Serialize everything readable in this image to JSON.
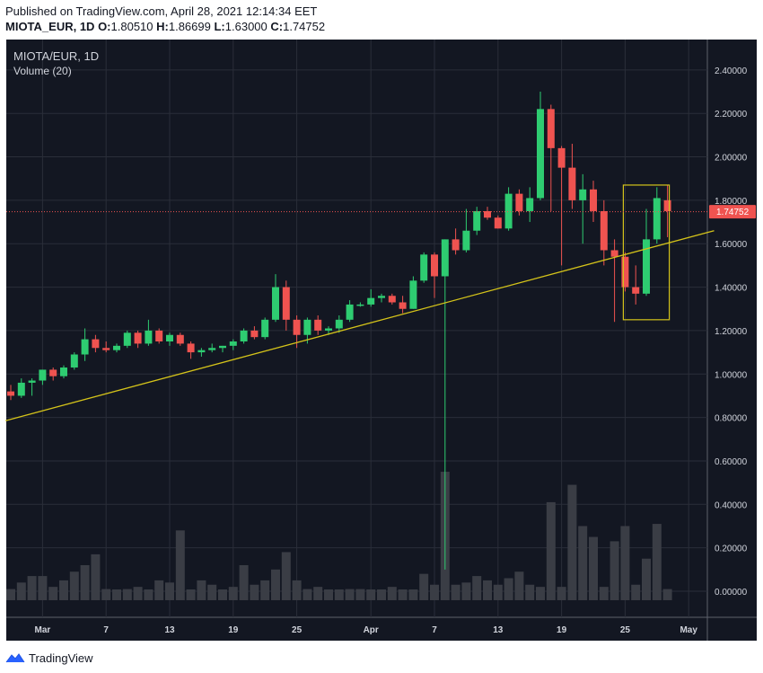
{
  "header": {
    "published": "Published on TradingView.com, April 28, 2021 12:14:34 EET",
    "symbol": "MIOTA_EUR, 1D",
    "open_label": "O:",
    "open": "1.80510",
    "high_label": "H:",
    "high": "1.86699",
    "low_label": "L:",
    "low": "1.63000",
    "close_label": "C:",
    "close": "1.74752"
  },
  "legend": {
    "title": "MIOTA/EUR, 1D",
    "volume": "Volume (20)"
  },
  "footer": {
    "brand": "TradingView"
  },
  "colors": {
    "up": "#26a69a",
    "up_bright": "#2ecc71",
    "down": "#ef5350",
    "trendline": "#d4c31a",
    "box": "#d4c31a",
    "price_line": "#ef5350",
    "background": "#131722",
    "grid": "#2a2e39"
  },
  "chart_data": {
    "type": "candlestick",
    "current_price": "1.74752",
    "y_ticks": [
      "2.40000",
      "2.20000",
      "2.00000",
      "1.80000",
      "1.60000",
      "1.40000",
      "1.20000",
      "1.00000",
      "0.80000",
      "0.60000",
      "0.40000",
      "0.20000",
      "0.00000"
    ],
    "y_tick_values": [
      2.4,
      2.2,
      2.0,
      1.8,
      1.6,
      1.4,
      1.2,
      1.0,
      0.8,
      0.6,
      0.4,
      0.2,
      0.0
    ],
    "ylim": [
      -0.12,
      2.54
    ],
    "x_ticks": [
      {
        "label": "Mar",
        "index": 3
      },
      {
        "label": "7",
        "index": 9
      },
      {
        "label": "13",
        "index": 15
      },
      {
        "label": "19",
        "index": 21
      },
      {
        "label": "25",
        "index": 27
      },
      {
        "label": "Apr",
        "index": 34
      },
      {
        "label": "7",
        "index": 40
      },
      {
        "label": "13",
        "index": 46
      },
      {
        "label": "19",
        "index": 52
      },
      {
        "label": "25",
        "index": 58
      },
      {
        "label": "May",
        "index": 64
      }
    ],
    "candles": [
      [
        0.92,
        0.95,
        0.88,
        0.9
      ],
      [
        0.9,
        0.98,
        0.89,
        0.96
      ],
      [
        0.96,
        0.98,
        0.9,
        0.97
      ],
      [
        0.97,
        1.02,
        0.95,
        1.02
      ],
      [
        1.02,
        1.03,
        0.97,
        0.99
      ],
      [
        0.99,
        1.04,
        0.98,
        1.03
      ],
      [
        1.03,
        1.1,
        1.02,
        1.09
      ],
      [
        1.09,
        1.21,
        1.06,
        1.16
      ],
      [
        1.16,
        1.18,
        1.1,
        1.12
      ],
      [
        1.12,
        1.15,
        1.1,
        1.11
      ],
      [
        1.11,
        1.14,
        1.1,
        1.13
      ],
      [
        1.13,
        1.2,
        1.12,
        1.19
      ],
      [
        1.19,
        1.2,
        1.12,
        1.14
      ],
      [
        1.14,
        1.25,
        1.13,
        1.2
      ],
      [
        1.2,
        1.21,
        1.14,
        1.15
      ],
      [
        1.15,
        1.19,
        1.13,
        1.18
      ],
      [
        1.18,
        1.19,
        1.13,
        1.14
      ],
      [
        1.14,
        1.15,
        1.07,
        1.1
      ],
      [
        1.1,
        1.12,
        1.08,
        1.11
      ],
      [
        1.11,
        1.14,
        1.1,
        1.12
      ],
      [
        1.12,
        1.13,
        1.1,
        1.13
      ],
      [
        1.13,
        1.16,
        1.11,
        1.15
      ],
      [
        1.15,
        1.21,
        1.14,
        1.2
      ],
      [
        1.2,
        1.22,
        1.16,
        1.17
      ],
      [
        1.17,
        1.26,
        1.16,
        1.25
      ],
      [
        1.25,
        1.46,
        1.24,
        1.4
      ],
      [
        1.4,
        1.43,
        1.2,
        1.25
      ],
      [
        1.25,
        1.27,
        1.12,
        1.18
      ],
      [
        1.18,
        1.26,
        1.14,
        1.25
      ],
      [
        1.25,
        1.27,
        1.18,
        1.2
      ],
      [
        1.2,
        1.22,
        1.18,
        1.21
      ],
      [
        1.21,
        1.27,
        1.19,
        1.25
      ],
      [
        1.25,
        1.34,
        1.24,
        1.32
      ],
      [
        1.32,
        1.33,
        1.31,
        1.32
      ],
      [
        1.32,
        1.39,
        1.31,
        1.35
      ],
      [
        1.35,
        1.37,
        1.33,
        1.36
      ],
      [
        1.36,
        1.37,
        1.32,
        1.33
      ],
      [
        1.33,
        1.36,
        1.28,
        1.3
      ],
      [
        1.3,
        1.45,
        1.3,
        1.43
      ],
      [
        1.43,
        1.56,
        1.42,
        1.55
      ],
      [
        1.55,
        1.56,
        1.35,
        1.45
      ],
      [
        1.45,
        1.62,
        0.1,
        1.62
      ],
      [
        1.62,
        1.67,
        1.55,
        1.57
      ],
      [
        1.57,
        1.76,
        1.56,
        1.66
      ],
      [
        1.66,
        1.77,
        1.64,
        1.75
      ],
      [
        1.75,
        1.77,
        1.71,
        1.72
      ],
      [
        1.72,
        1.73,
        1.67,
        1.67
      ],
      [
        1.67,
        1.86,
        1.66,
        1.83
      ],
      [
        1.83,
        1.85,
        1.73,
        1.75
      ],
      [
        1.75,
        1.86,
        1.7,
        1.81
      ],
      [
        1.81,
        2.3,
        1.8,
        2.22
      ],
      [
        2.22,
        2.24,
        1.75,
        2.04
      ],
      [
        2.04,
        2.05,
        1.5,
        1.95
      ],
      [
        1.95,
        2.06,
        1.76,
        1.8
      ],
      [
        1.8,
        1.92,
        1.6,
        1.85
      ],
      [
        1.85,
        1.89,
        1.7,
        1.75
      ],
      [
        1.75,
        1.8,
        1.5,
        1.57
      ],
      [
        1.57,
        1.62,
        1.24,
        1.54
      ],
      [
        1.54,
        1.56,
        1.38,
        1.4
      ],
      [
        1.4,
        1.5,
        1.32,
        1.37
      ],
      [
        1.37,
        1.76,
        1.36,
        1.62
      ],
      [
        1.62,
        1.86,
        1.6,
        1.81
      ],
      [
        1.8,
        1.87,
        1.63,
        1.75
      ]
    ],
    "volume": [
      0.01,
      0.04,
      0.07,
      0.07,
      0.02,
      0.05,
      0.09,
      0.12,
      0.17,
      0.01,
      0.0,
      0.01,
      0.02,
      0.0,
      0.05,
      0.04,
      0.28,
      0.0,
      0.05,
      0.03,
      0.0,
      0.02,
      0.12,
      0.03,
      0.05,
      0.1,
      0.18,
      0.05,
      0.01,
      0.02,
      0.0,
      0.0,
      0.01,
      0.01,
      0.0,
      0.0,
      0.02,
      0.0,
      0.0,
      0.08,
      0.03,
      0.55,
      0.03,
      0.04,
      0.07,
      0.05,
      0.03,
      0.06,
      0.09,
      0.03,
      0.02,
      0.41,
      0.02,
      0.49,
      0.3,
      0.25,
      0.02,
      0.23,
      0.3,
      0.03,
      0.15,
      0.31,
      0.01
    ],
    "vol_scale": 0.14,
    "trendline": {
      "start": [
        -0.5,
        0.785
      ],
      "end": [
        66.4,
        1.66
      ]
    },
    "box": {
      "i0": 58.0,
      "i1": 62.0,
      "top": 1.87,
      "bottom": 1.25
    }
  }
}
